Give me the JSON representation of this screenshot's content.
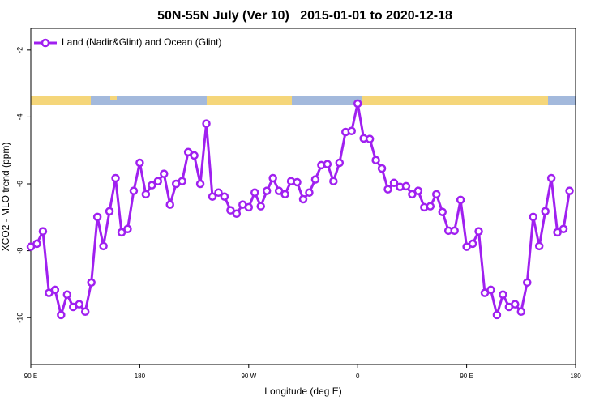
{
  "chart_data": {
    "type": "line",
    "title": "50N-55N July (Ver 10)   2015-01-01 to 2020-12-18",
    "xlabel": "Longitude (deg E)",
    "ylabel": "XCO2 - MLO trend (ppm)",
    "xlim": [
      90,
      540
    ],
    "ylim": [
      -11.4,
      -1.35
    ],
    "xticks": [
      {
        "value": 90,
        "label": "90 E"
      },
      180,
      {
        "value": 270,
        "label": "90 W"
      },
      {
        "value": 360,
        "label": "0"
      },
      {
        "value": 450,
        "label": "90 E"
      },
      {
        "value": 540,
        "label": "180"
      }
    ],
    "yticks": [
      -2,
      -4,
      -6,
      -8,
      -10
    ],
    "legend": "top-left",
    "x": [
      90,
      95,
      100,
      105,
      110,
      115,
      120,
      125,
      130,
      135,
      140,
      145,
      150,
      155,
      160,
      165,
      170,
      175,
      180,
      185,
      190,
      195,
      200,
      205,
      210,
      215,
      220,
      225,
      230,
      235,
      240,
      245,
      250,
      255,
      260,
      265,
      270,
      275,
      280,
      285,
      290,
      295,
      300,
      305,
      310,
      315,
      320,
      325,
      330,
      335,
      340,
      345,
      350,
      355,
      360,
      365,
      370,
      375,
      380,
      385,
      390,
      395,
      400,
      405,
      410,
      415,
      420,
      425,
      430,
      435,
      440,
      445,
      450,
      455,
      460,
      465,
      470,
      475,
      480,
      485,
      490,
      495,
      500,
      505,
      510,
      515,
      520,
      525,
      530,
      535
    ],
    "series": [
      {
        "name": "Land (Nadir&Glint) and Ocean (Glint)",
        "color": "#a020f0",
        "values": [
          -7.88,
          -7.79,
          -7.42,
          -9.26,
          -9.17,
          -9.92,
          -9.31,
          -9.68,
          -9.6,
          -9.82,
          -8.95,
          -6.99,
          -7.86,
          -6.82,
          -5.83,
          -7.45,
          -7.35,
          -6.21,
          -5.37,
          -6.31,
          -6.04,
          -5.92,
          -5.7,
          -6.62,
          -6.0,
          -5.92,
          -5.05,
          -5.15,
          -6.0,
          -4.2,
          -6.38,
          -6.26,
          -6.38,
          -6.79,
          -6.89,
          -6.62,
          -6.7,
          -6.26,
          -6.67,
          -6.21,
          -5.83,
          -6.21,
          -6.31,
          -5.92,
          -5.95,
          -6.46,
          -6.26,
          -5.87,
          -5.44,
          -5.41,
          -5.92,
          -5.37,
          -4.45,
          -4.42,
          -3.6,
          -4.64,
          -4.66,
          -5.29,
          -5.54,
          -6.16,
          -5.97,
          -6.09,
          -6.07,
          -6.31,
          -6.21,
          -6.7,
          -6.67,
          -6.31,
          -6.84,
          -7.4,
          -7.4,
          -6.48,
          -7.88,
          -7.79,
          -7.42,
          -9.26,
          -9.17,
          -9.92,
          -9.31,
          -9.68,
          -9.6,
          -9.82,
          -8.95,
          -6.99,
          -7.86,
          -6.82,
          -5.83,
          -7.45,
          -7.35,
          -6.21
        ]
      }
    ]
  }
}
